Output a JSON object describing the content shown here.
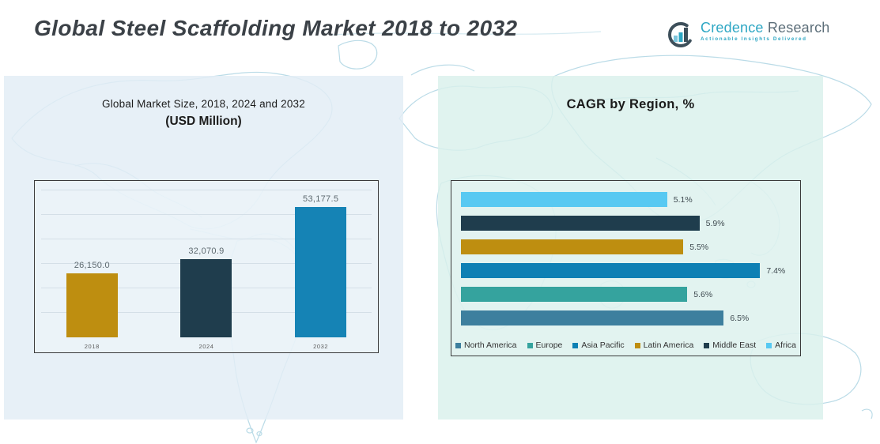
{
  "header": {
    "title": "Global Steel Scaffolding Market 2018 to 2032",
    "logo": {
      "brand_primary": "Credence",
      "brand_secondary": "Research",
      "tagline": "Actionable Insights Delivered",
      "icon": "bar-chart-circle-icon",
      "accent_color": "#2ea7c4",
      "slate_color": "#3d4f5a"
    }
  },
  "charts": {
    "left": {
      "title_line1": "Global Market Size, 2018, 2024 and 2032",
      "title_line2": "(USD Million)"
    },
    "right": {
      "title": "CAGR by Region, %"
    }
  },
  "chart_data": [
    {
      "type": "bar",
      "title": "Global Market Size, 2018, 2024 and 2032 (USD Million)",
      "categories": [
        "2018",
        "2024",
        "2032"
      ],
      "values": [
        26150.0,
        32070.9,
        53177.5
      ],
      "value_labels": [
        "26,150.0",
        "32,070.9",
        "53,177.5"
      ],
      "bar_colors": [
        "#be8e10",
        "#1f3d4d",
        "#1583b5"
      ],
      "ylim": [
        0,
        60000
      ],
      "gridline_step": 10000,
      "grid": true,
      "xlabel": "",
      "ylabel": "",
      "legend_position": "none"
    },
    {
      "type": "bar-horizontal",
      "title": "CAGR by Region, %",
      "categories": [
        "Africa",
        "Middle East",
        "Latin America",
        "Asia Pacific",
        "Europe",
        "North America"
      ],
      "values": [
        5.1,
        5.9,
        5.5,
        7.4,
        5.6,
        6.5
      ],
      "value_labels": [
        "5.1%",
        "5.9%",
        "5.5%",
        "7.4%",
        "5.6%",
        "6.5%"
      ],
      "bar_colors": [
        "#58c9f2",
        "#1f3d4d",
        "#be8e10",
        "#0e80b4",
        "#35a39e",
        "#3d7f9e"
      ],
      "xlim": [
        0,
        8
      ],
      "grid": false,
      "legend_position": "bottom",
      "legend": [
        {
          "label": "North America",
          "color": "#3d7f9e"
        },
        {
          "label": "Europe",
          "color": "#35a39e"
        },
        {
          "label": "Asia Pacific",
          "color": "#0e80b4"
        },
        {
          "label": "Latin America",
          "color": "#be8e10"
        },
        {
          "label": "Middle East",
          "color": "#1f3d4d"
        },
        {
          "label": "Africa",
          "color": "#58c9f2"
        }
      ]
    }
  ]
}
